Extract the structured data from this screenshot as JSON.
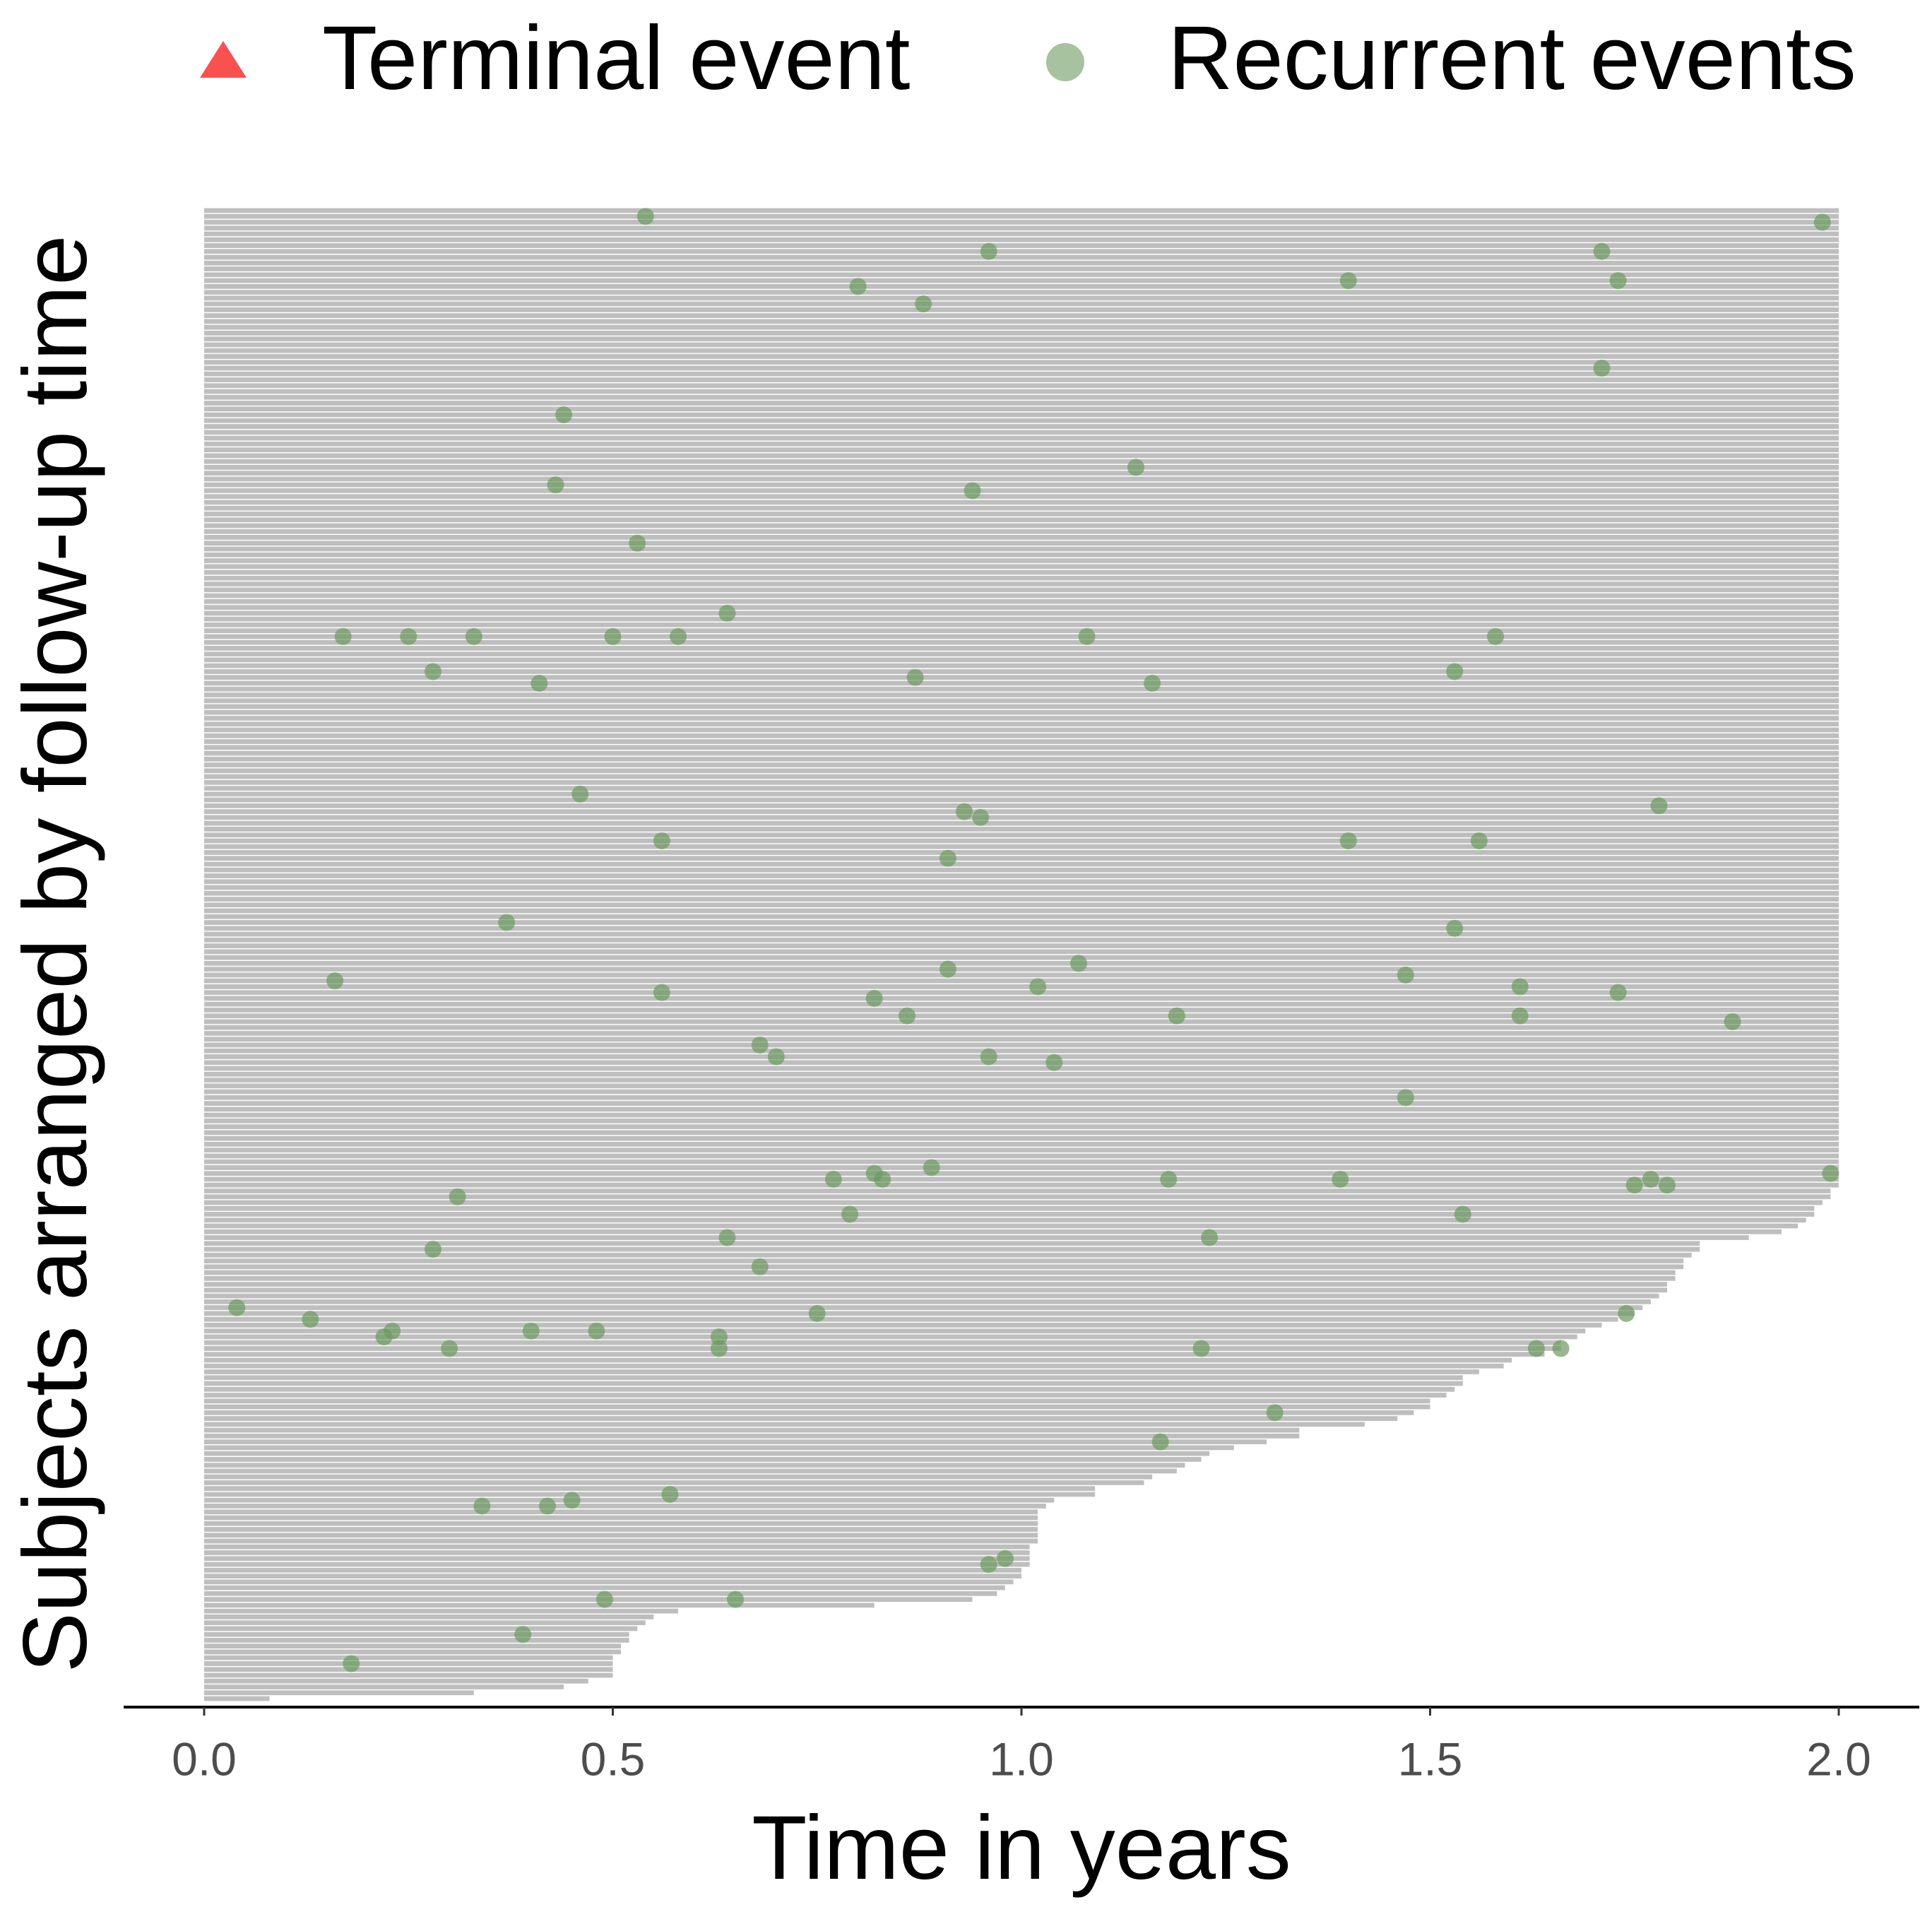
{
  "chart_data": {
    "type": "swimmer",
    "x_label": "Time in years",
    "y_label": "Subjects arranged by follow-up time",
    "xlim": [
      0,
      2
    ],
    "xticks": [
      {
        "value": 0,
        "label": "0.0"
      },
      0.5,
      {
        "value": 1,
        "label": "1.0"
      },
      1.5,
      {
        "value": 2,
        "label": "2.0"
      }
    ],
    "bar_color": "#bebebe",
    "follow_up": [
      0.08,
      0.33,
      0.44,
      0.47,
      0.5,
      0.5,
      0.5,
      0.5,
      0.51,
      0.51,
      0.52,
      0.52,
      0.53,
      0.54,
      0.55,
      0.58,
      0.82,
      0.94,
      0.97,
      0.98,
      0.99,
      1.0,
      1.0,
      1.01,
      1.01,
      1.01,
      1.01,
      1.02,
      1.02,
      1.02,
      1.02,
      1.02,
      1.02,
      1.03,
      1.04,
      1.09,
      1.09,
      1.15,
      1.16,
      1.19,
      1.2,
      1.22,
      1.23,
      1.26,
      1.3,
      1.34,
      1.34,
      1.42,
      1.46,
      1.48,
      1.5,
      1.5,
      1.52,
      1.53,
      1.54,
      1.54,
      1.56,
      1.59,
      1.6,
      1.64,
      1.66,
      1.66,
      1.68,
      1.69,
      1.71,
      1.73,
      1.75,
      1.76,
      1.77,
      1.78,
      1.79,
      1.79,
      1.8,
      1.8,
      1.81,
      1.81,
      1.82,
      1.83,
      1.83,
      1.89,
      1.93,
      1.95,
      1.96,
      1.97,
      1.97,
      1.98,
      1.99,
      1.99,
      2,
      2,
      2,
      2,
      2,
      2,
      2,
      2,
      2,
      2,
      2,
      2,
      2,
      2,
      2,
      2,
      2,
      2,
      2,
      2,
      2,
      2,
      2,
      2,
      2,
      2,
      2,
      2,
      2,
      2,
      2,
      2,
      2,
      2,
      2,
      2,
      2,
      2,
      2,
      2,
      2,
      2,
      2,
      2,
      2,
      2,
      2,
      2,
      2,
      2,
      2,
      2,
      2,
      2,
      2,
      2,
      2,
      2,
      2,
      2,
      2,
      2,
      2,
      2,
      2,
      2,
      2,
      2,
      2,
      2,
      2,
      2,
      2,
      2,
      2,
      2,
      2,
      2,
      2,
      2,
      2,
      2,
      2,
      2,
      2,
      2,
      2,
      2,
      2,
      2,
      2,
      2,
      2,
      2,
      2,
      2,
      2,
      2,
      2,
      2,
      2,
      2,
      2,
      2,
      2,
      2,
      2,
      2,
      2,
      2,
      2,
      2,
      2,
      2,
      2,
      2,
      2,
      2,
      2,
      2,
      2,
      2,
      2,
      2,
      2,
      2,
      2,
      2,
      2,
      2,
      2,
      2,
      2,
      2,
      2,
      2,
      2,
      2,
      2,
      2,
      2,
      2,
      2,
      2,
      2,
      2,
      2,
      2,
      2,
      2,
      2,
      2,
      2,
      2,
      2,
      2,
      2,
      2,
      2,
      2,
      2,
      2,
      2,
      2,
      2,
      2,
      2,
      2
    ],
    "series": [
      {
        "name": "Terminal event",
        "color": "#f8514f",
        "marker": "triangle",
        "x": [],
        "y": []
      },
      {
        "name": "Recurrent events",
        "color": "#6b9a5e",
        "marker": "circle",
        "x": [
          0.54,
          1.98,
          0.96,
          1.71,
          0.8,
          1.4,
          1.73,
          0.88,
          1.71,
          0.44,
          1.14,
          0.43,
          0.94,
          0.53,
          0.64,
          0.17,
          0.25,
          0.33,
          0.5,
          0.58,
          1.08,
          1.58,
          0.28,
          1.53,
          0.87,
          0.41,
          1.16,
          0.46,
          1.78,
          0.93,
          0.95,
          0.56,
          1.4,
          1.56,
          0.91,
          0.37,
          1.53,
          1.07,
          0.91,
          1.47,
          0.16,
          1.02,
          1.61,
          0.56,
          1.73,
          0.82,
          0.86,
          1.19,
          1.61,
          1.87,
          0.68,
          0.7,
          0.96,
          1.04,
          1.47,
          0.89,
          1.99,
          0.82,
          0.77,
          0.83,
          1.18,
          1.39,
          1.77,
          1.75,
          1.79,
          0.31,
          0.79,
          1.54,
          0.64,
          1.23,
          0.28,
          0.68,
          0.04,
          0.75,
          1.74,
          0.13,
          0.23,
          0.22,
          0.4,
          0.48,
          0.63,
          0.3,
          0.63,
          1.22,
          1.63,
          1.66,
          1.31,
          1.17,
          0.57,
          0.34,
          0.42,
          0.45,
          0.98,
          0.96,
          0.49,
          0.65,
          0.39,
          0.18
        ],
        "y": [
          255,
          254,
          249,
          249,
          243,
          244,
          244,
          240,
          229,
          221,
          212,
          209,
          208,
          199,
          187,
          183,
          183,
          183,
          183,
          183,
          183,
          183,
          177,
          177,
          176,
          175,
          175,
          156,
          154,
          153,
          152,
          148,
          148,
          148,
          145,
          134,
          133,
          127,
          126,
          125,
          124,
          123,
          123,
          122,
          122,
          121,
          118,
          118,
          118,
          117,
          113,
          111,
          111,
          110,
          104,
          92,
          91,
          91,
          90,
          90,
          90,
          90,
          90,
          89,
          89,
          87,
          84,
          84,
          80,
          80,
          78,
          75,
          68,
          67,
          67,
          66,
          64,
          63,
          64,
          64,
          63,
          61,
          61,
          61,
          61,
          61,
          50,
          45,
          36,
          34,
          34,
          35,
          25,
          24,
          18,
          18,
          12,
          7
        ]
      }
    ]
  }
}
